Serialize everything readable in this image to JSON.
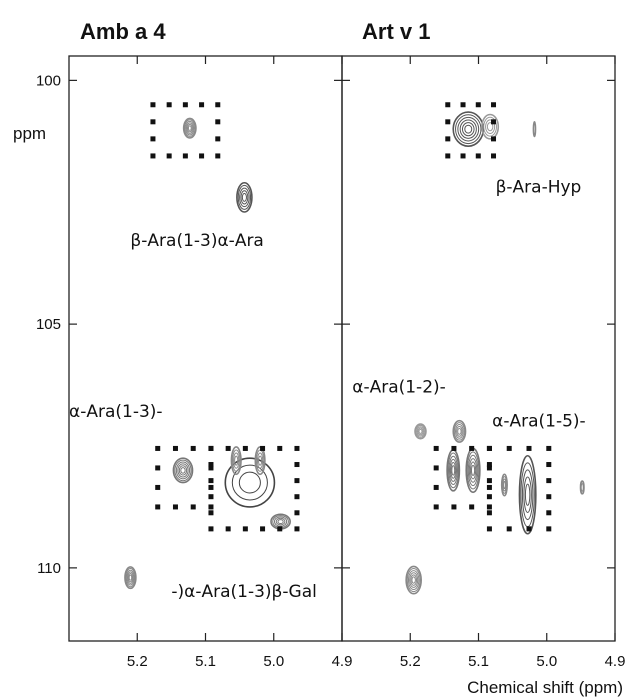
{
  "chart_data": {
    "type": "contour",
    "xlabel": "Chemical shift (ppm)",
    "ylabel": "ppm",
    "x_reversed": true,
    "y_reversed": true,
    "xlim": [
      5.3,
      4.9
    ],
    "ylim": [
      99.5,
      111.5
    ],
    "xticks": [
      "5.2",
      "5.1",
      "5.0",
      "4.9"
    ],
    "yticks": [
      "100",
      "105",
      "110"
    ],
    "panels": [
      {
        "title": "Amb a 4",
        "peaks": [
          {
            "x": 5.123,
            "y": 100.98,
            "rx": 0.009,
            "ry": 0.2,
            "levels": 6,
            "color": "#8a8a8a"
          },
          {
            "x": 5.043,
            "y": 102.4,
            "rx": 0.011,
            "ry": 0.3,
            "levels": 5,
            "color": "#555555"
          },
          {
            "x": 5.133,
            "y": 108.0,
            "rx": 0.014,
            "ry": 0.25,
            "levels": 6,
            "color": "#777777"
          },
          {
            "x": 5.035,
            "y": 108.25,
            "rx": 0.036,
            "ry": 0.5,
            "levels": 3,
            "color": "#444444"
          },
          {
            "x": 5.055,
            "y": 107.8,
            "rx": 0.007,
            "ry": 0.28,
            "levels": 4,
            "color": "#888888"
          },
          {
            "x": 5.02,
            "y": 107.8,
            "rx": 0.007,
            "ry": 0.28,
            "levels": 4,
            "color": "#888888"
          },
          {
            "x": 4.99,
            "y": 109.05,
            "rx": 0.014,
            "ry": 0.15,
            "levels": 5,
            "color": "#777777"
          },
          {
            "x": 5.21,
            "y": 110.2,
            "rx": 0.008,
            "ry": 0.22,
            "levels": 6,
            "color": "#888888"
          }
        ],
        "boxes": [
          {
            "x1": 5.177,
            "x2": 5.082,
            "y1": 100.5,
            "y2": 101.55
          },
          {
            "x1": 5.17,
            "x2": 5.092,
            "y1": 107.55,
            "y2": 108.75
          },
          {
            "x1": 5.092,
            "x2": 4.966,
            "y1": 107.55,
            "y2": 109.2
          }
        ],
        "annotations": [
          {
            "text": "β-Ara(1-3)α-Ara",
            "x": 5.21,
            "y": 103.4
          },
          {
            "text": "α-Ara(1-3)-",
            "x": 5.3,
            "y": 106.9
          },
          {
            "text": "-)α-Ara(1-3)β-Gal",
            "x": 5.15,
            "y": 110.6
          }
        ]
      },
      {
        "title": "Art v 1",
        "peaks": [
          {
            "x": 5.115,
            "y": 101.0,
            "rx": 0.022,
            "ry": 0.35,
            "levels": 6,
            "color": "#555555"
          },
          {
            "x": 5.083,
            "y": 100.95,
            "rx": 0.012,
            "ry": 0.25,
            "levels": 4,
            "color": "#999999"
          },
          {
            "x": 5.128,
            "y": 107.2,
            "rx": 0.009,
            "ry": 0.22,
            "levels": 5,
            "color": "#888888"
          },
          {
            "x": 5.185,
            "y": 107.2,
            "rx": 0.008,
            "ry": 0.15,
            "levels": 5,
            "color": "#999999"
          },
          {
            "x": 5.137,
            "y": 108.0,
            "rx": 0.009,
            "ry": 0.42,
            "levels": 6,
            "color": "#777777"
          },
          {
            "x": 5.108,
            "y": 108.0,
            "rx": 0.01,
            "ry": 0.45,
            "levels": 6,
            "color": "#777777"
          },
          {
            "x": 5.062,
            "y": 108.3,
            "rx": 0.004,
            "ry": 0.22,
            "levels": 4,
            "color": "#888888"
          },
          {
            "x": 5.028,
            "y": 108.5,
            "rx": 0.012,
            "ry": 0.8,
            "levels": 5,
            "color": "#555555"
          },
          {
            "x": 5.195,
            "y": 110.25,
            "rx": 0.011,
            "ry": 0.28,
            "levels": 6,
            "color": "#888888"
          },
          {
            "x": 4.948,
            "y": 108.35,
            "rx": 0.0025,
            "ry": 0.13,
            "levels": 2,
            "color": "#888888"
          },
          {
            "x": 5.018,
            "y": 101.0,
            "rx": 0.0015,
            "ry": 0.15,
            "levels": 1,
            "color": "#888888"
          }
        ],
        "boxes": [
          {
            "x1": 5.145,
            "x2": 5.078,
            "y1": 100.5,
            "y2": 101.55
          },
          {
            "x1": 5.162,
            "x2": 5.084,
            "y1": 107.55,
            "y2": 108.75
          },
          {
            "x1": 5.084,
            "x2": 4.997,
            "y1": 107.55,
            "y2": 109.2
          }
        ],
        "annotations": [
          {
            "text": "β-Ara-Hyp",
            "x": 5.075,
            "y": 102.3
          },
          {
            "text": "α-Ara(1-2)-",
            "x": 5.285,
            "y": 106.4
          },
          {
            "text": "α-Ara(1-5)-",
            "x": 5.08,
            "y": 107.1
          }
        ]
      }
    ]
  }
}
